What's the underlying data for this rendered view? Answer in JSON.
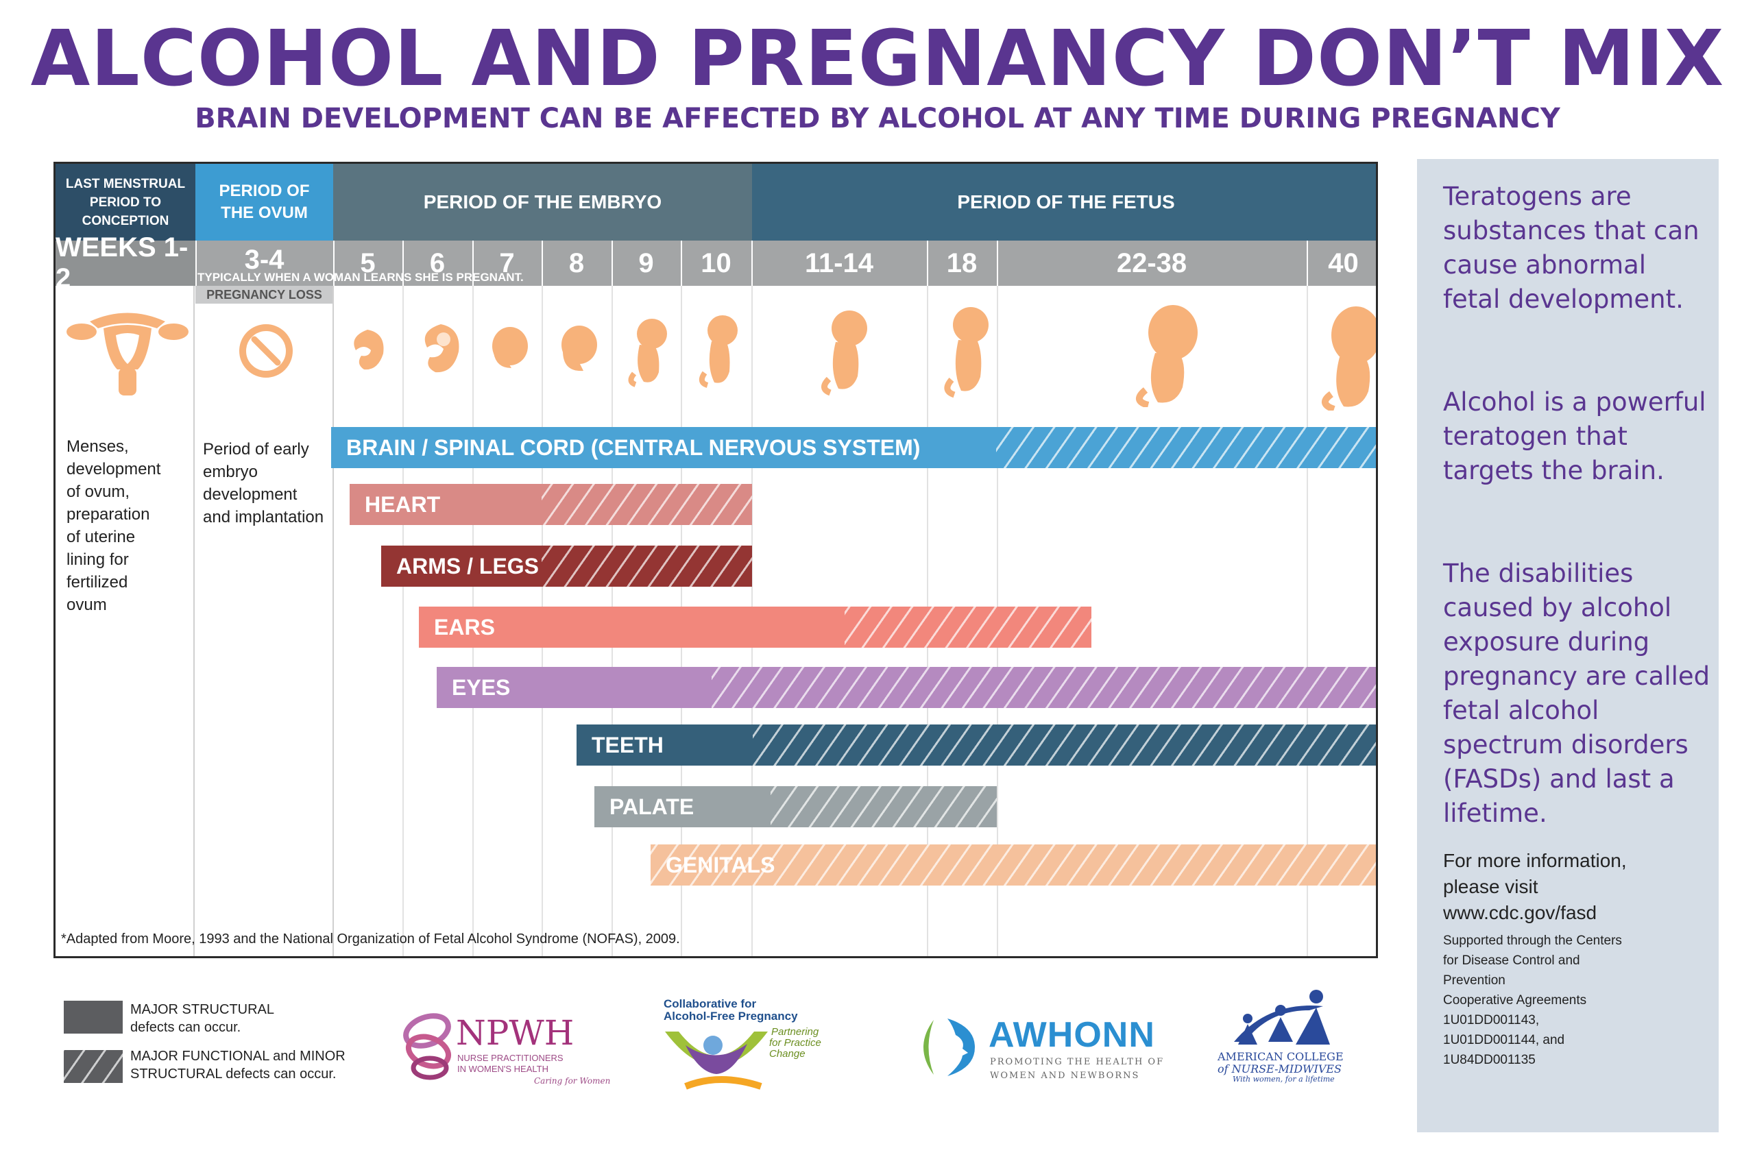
{
  "header": {
    "title": "ALCOHOL AND PREGNANCY DON’T MIX",
    "subtitle": "BRAIN DEVELOPMENT CAN BE AFFECTED BY ALCOHOL AT ANY TIME DURING PREGNANCY"
  },
  "periods": [
    {
      "label": "LAST MENSTRUAL PERIOD TO CONCEPTION",
      "color": "#2d4e67"
    },
    {
      "label": "PERIOD OF THE OVUM",
      "color": "#3d9cd2"
    },
    {
      "label": "PERIOD OF THE EMBRYO",
      "color": "#5a7480"
    },
    {
      "label": "PERIOD OF THE FETUS",
      "color": "#3a6680"
    }
  ],
  "weeks": [
    "WEEKS 1-2",
    "3-4",
    "5",
    "6",
    "7",
    "8",
    "9",
    "10",
    "11-14",
    "18",
    "22-38",
    "40"
  ],
  "notes": {
    "learns_pregnant": "TYPICALLY WHEN A WOMAN LEARNS SHE IS PREGNANT.",
    "pregnancy_loss": "PREGNANCY LOSS"
  },
  "descriptions": {
    "weeks_1_2": [
      "Menses,",
      "development",
      "of ovum,",
      "preparation",
      "of uterine",
      "lining for",
      "fertilized",
      "ovum"
    ],
    "weeks_3_4": [
      "Period of early",
      "embryo",
      "development",
      "and implantation"
    ]
  },
  "bars": [
    {
      "label": "BRAIN / SPINAL CORD (CENTRAL NERVOUS SYSTEM)",
      "color": "#4ba3d5",
      "major_from_week": "5",
      "functional_from_week": "18",
      "until_week": "40"
    },
    {
      "label": "HEART",
      "color": "#d98a86",
      "major_from_week": "5",
      "functional_from_week": "8",
      "until_week": "10"
    },
    {
      "label": "ARMS / LEGS",
      "color": "#943533",
      "major_from_week": "5",
      "functional_from_week": "8",
      "until_week": "10"
    },
    {
      "label": "EARS",
      "color": "#f2877c",
      "major_from_week": "6",
      "functional_from_week": "11-14",
      "until_week": "18"
    },
    {
      "label": "EYES",
      "color": "#b58ac0",
      "major_from_week": "6",
      "functional_from_week": "10",
      "until_week": "40"
    },
    {
      "label": "TEETH",
      "color": "#35607a",
      "major_from_week": "8",
      "functional_from_week": "11-14",
      "until_week": "40"
    },
    {
      "label": "PALATE",
      "color": "#9aa3a6",
      "major_from_week": "8",
      "functional_from_week": "11-14",
      "until_week": "18"
    },
    {
      "label": "GENITALS",
      "color": "#f5c19c",
      "major_from_week": "9",
      "functional_from_week": "9",
      "until_week": "40"
    }
  ],
  "footnote": "*Adapted from Moore, 1993 and the National Organization of Fetal Alcohol Syndrome (NOFAS), 2009.",
  "legend": {
    "major_line1": "MAJOR STRUCTURAL",
    "major_line2": "defects can occur.",
    "functional_line1": "MAJOR FUNCTIONAL and MINOR",
    "functional_line2": "STRUCTURAL defects can occur."
  },
  "logos": {
    "npwh": "NPWH",
    "npwh_sub1": "NURSE PRACTITIONERS",
    "npwh_sub2": "IN WOMEN'S HEALTH",
    "npwh_tag": "Caring for Women",
    "cafp1": "Collaborative for",
    "cafp2": "Alcohol-Free Pregnancy",
    "cafp_tag1": "Partnering",
    "cafp_tag2": "for Practice",
    "cafp_tag3": "Change",
    "awhonn": "AWHONN",
    "awhonn_sub1": "PROMOTING THE HEALTH OF",
    "awhonn_sub2": "WOMEN AND NEWBORNS",
    "acnm1": "AMERICAN COLLEGE",
    "acnm2": "of NURSE-MIDWIVES",
    "acnm3": "With women, for a lifetime"
  },
  "sidebar": {
    "p1": "Teratogens are substances that can cause abnormal fetal development.",
    "p2": "Alcohol is a powerful teratogen that targets the brain.",
    "p3": "The disabilities caused by alcohol exposure during pregnancy are called fetal alcohol spectrum disorders (FASDs) and last a lifetime.",
    "info1": "For more information,",
    "info2": "please visit",
    "info3": "www.cdc.gov/fasd",
    "support": [
      "Supported through the Centers",
      "for Disease Control and",
      "Prevention",
      "Cooperative Agreements",
      "1U01DD001143,",
      "1U01DD001144, and",
      "1U84DD001135"
    ]
  },
  "colors": {
    "title": "#5a3590",
    "fetus_orange": "#f7b27a",
    "legend_gray": "#5c5d60"
  },
  "icons": [
    "uterus-icon",
    "ovum-icon",
    "embryo-icon",
    "fetus-icon"
  ]
}
